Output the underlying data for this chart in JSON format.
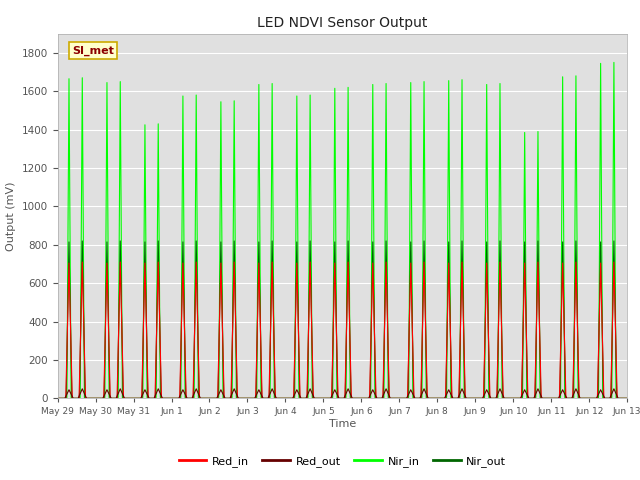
{
  "title": "LED NDVI Sensor Output",
  "xlabel": "Time",
  "ylabel": "Output (mV)",
  "ylim": [
    0,
    1900
  ],
  "yticks": [
    0,
    200,
    400,
    600,
    800,
    1000,
    1200,
    1400,
    1600,
    1800
  ],
  "x_tick_labels": [
    "May 29",
    "May 30",
    "May 31",
    "Jun 1",
    "Jun 2",
    "Jun 3",
    "Jun 4",
    "Jun 5",
    "Jun 6",
    "Jun 7",
    "Jun 8",
    "Jun 9",
    "Jun 10",
    "Jun 11",
    "Jun 12",
    "Jun 13"
  ],
  "background_color": "#ffffff",
  "plot_bg_color": "#e0e0e0",
  "legend_label": "SI_met",
  "legend_bg": "#ffffcc",
  "legend_border": "#ccaa00",
  "colors": {
    "Red_in": "#ff0000",
    "Red_out": "#660000",
    "Nir_in": "#00ff00",
    "Nir_out": "#006600"
  },
  "n_cycles": 15,
  "red_in_peak": 710,
  "red_out_peak": 50,
  "nir_in_peaks": [
    1670,
    1650,
    1430,
    1580,
    1550,
    1640,
    1580,
    1620,
    1640,
    1650,
    1660,
    1640,
    1390,
    1680,
    1750
  ],
  "nir_out_peak": 820,
  "baseline": 5
}
